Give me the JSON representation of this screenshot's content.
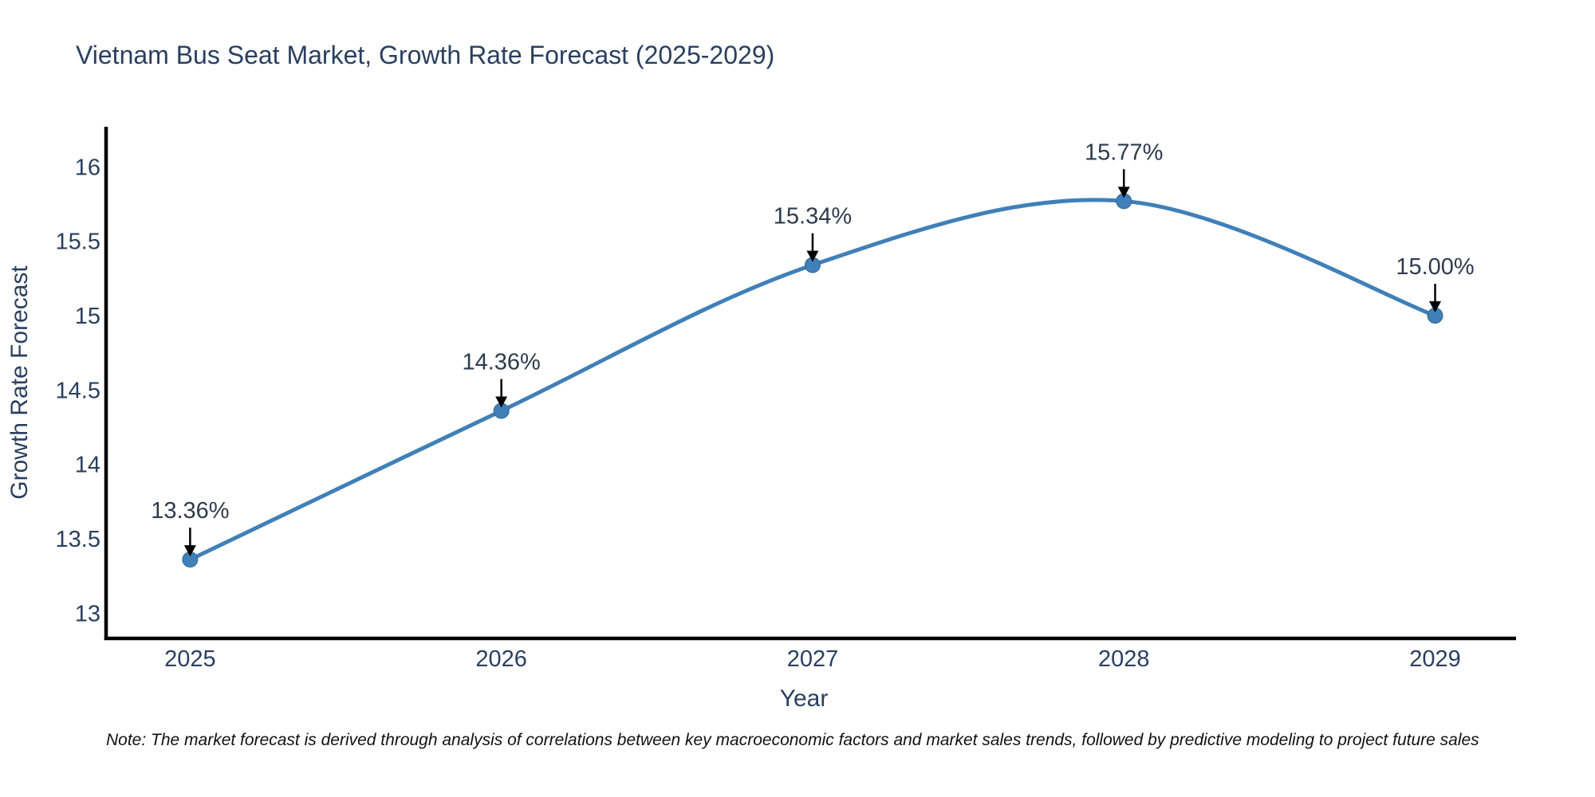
{
  "title": "Vietnam Bus Seat Market, Growth Rate Forecast (2025-2029)",
  "note": "Note: The market forecast is derived through analysis of correlations between key macroeconomic factors and market sales trends, followed by predictive modeling to project future sales",
  "chart_data": {
    "type": "line",
    "title": "Vietnam Bus Seat Market, Growth Rate Forecast (2025-2029)",
    "xlabel": "Year",
    "ylabel": "Growth Rate Forecast",
    "x": [
      2025,
      2026,
      2027,
      2028,
      2029
    ],
    "x_tick_labels": [
      "2025",
      "2026",
      "2027",
      "2028",
      "2029"
    ],
    "series": [
      {
        "name": "Growth Rate Forecast",
        "values": [
          13.36,
          14.36,
          15.34,
          15.77,
          15.0
        ]
      }
    ],
    "point_labels": [
      "13.36%",
      "14.36%",
      "15.34%",
      "15.77%",
      "15.00%"
    ],
    "yticks": [
      13,
      13.5,
      14,
      14.5,
      15,
      15.5,
      16
    ],
    "ytick_labels": [
      "13",
      "13.5",
      "14",
      "14.5",
      "15",
      "15.5",
      "16"
    ],
    "xlim": [
      2024.73,
      2029.26
    ],
    "ylim": [
      12.83,
      16.27
    ],
    "grid": false,
    "legend": "none",
    "line_style": "spline",
    "colors": {
      "line": "#4080b8",
      "marker": "#4080b8",
      "marker_edge": "#35688c",
      "annotation_arrow": "#000000",
      "axis": "#000000",
      "heading_text": "#2a3f5f",
      "annotation_text": "#2e3b4d",
      "note_text": "#111111"
    }
  }
}
